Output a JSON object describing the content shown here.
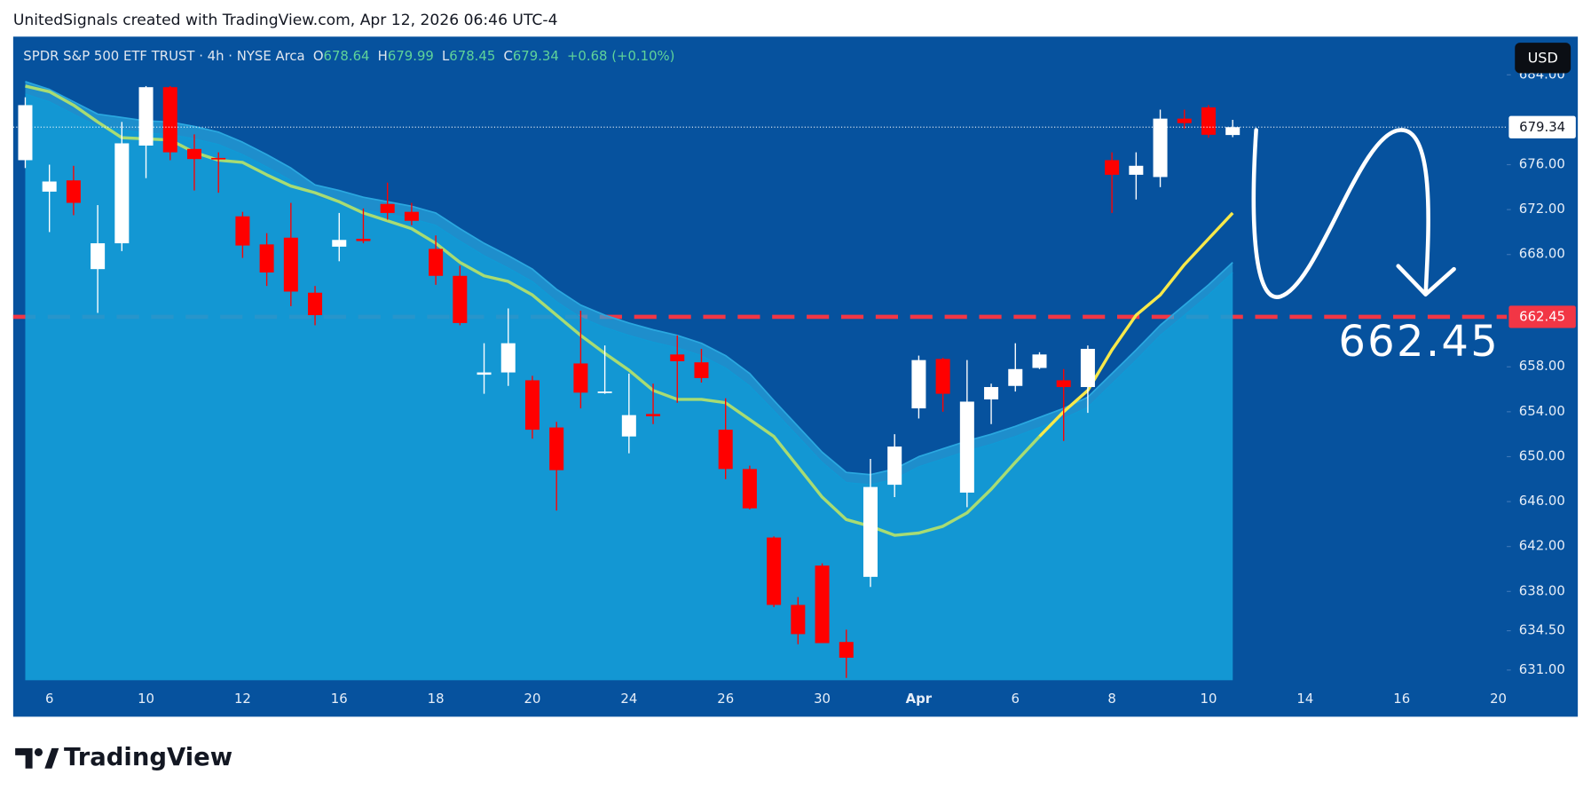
{
  "chart_data": {
    "type": "candlestick",
    "attribution": "UnitedSignals created with TradingView.com, Apr 12, 2026 06:46 UTC-4",
    "title": "SPDR S&P 500 ETF TRUST · 4h · NYSE Arca",
    "legend_labels": [
      "O",
      "H",
      "L",
      "C"
    ],
    "change_text": "+0.68 (+0.10%)",
    "currency": "USD",
    "brand": "TradingView",
    "up_color": "#ffffff",
    "down_color": "#ff0000",
    "open": [
      676.4,
      673.6,
      674.6,
      666.7,
      669.0,
      677.7,
      682.9,
      677.4,
      676.6,
      671.4,
      668.9,
      669.5,
      664.6,
      668.7,
      669.4,
      672.5,
      671.8,
      668.5,
      666.1,
      657.3,
      657.5,
      656.8,
      652.6,
      658.3,
      655.7,
      651.8,
      653.8,
      659.1,
      658.4,
      652.4,
      648.9,
      642.8,
      636.8,
      640.3,
      633.5,
      639.3,
      647.5,
      654.3,
      658.7,
      646.8,
      655.1,
      656.3,
      657.9,
      656.8,
      656.2,
      676.4,
      675.1,
      674.9,
      680.1,
      681.1,
      678.64
    ],
    "high": [
      682.0,
      676.0,
      675.9,
      672.4,
      679.8,
      683.0,
      683.0,
      678.7,
      677.1,
      671.8,
      669.9,
      672.6,
      665.2,
      671.7,
      672.1,
      674.4,
      672.6,
      669.7,
      667.0,
      660.1,
      663.2,
      657.2,
      653.1,
      663.0,
      659.9,
      657.4,
      656.5,
      660.8,
      659.6,
      655.2,
      649.2,
      642.9,
      637.5,
      640.5,
      634.6,
      649.8,
      652.0,
      659.0,
      658.8,
      658.6,
      656.5,
      660.1,
      659.3,
      657.8,
      659.9,
      677.1,
      677.1,
      680.9,
      680.9,
      681.3,
      679.99
    ],
    "low": [
      675.7,
      670.0,
      671.5,
      662.8,
      668.3,
      674.8,
      676.4,
      673.7,
      673.5,
      667.7,
      665.2,
      663.4,
      661.7,
      667.4,
      669.0,
      671.1,
      670.6,
      665.3,
      661.7,
      655.6,
      656.3,
      651.6,
      645.2,
      654.3,
      655.6,
      650.3,
      652.9,
      654.8,
      656.6,
      648.0,
      645.3,
      636.6,
      633.3,
      633.4,
      630.3,
      638.4,
      646.4,
      653.4,
      654.0,
      645.5,
      652.9,
      655.8,
      657.8,
      651.4,
      653.9,
      671.7,
      672.9,
      674.0,
      679.2,
      678.4,
      678.45
    ],
    "close": [
      681.3,
      674.5,
      672.6,
      669.0,
      677.9,
      682.9,
      677.1,
      676.5,
      676.5,
      668.8,
      666.4,
      664.7,
      662.6,
      669.3,
      669.2,
      671.7,
      671.0,
      666.1,
      661.9,
      657.5,
      660.1,
      652.4,
      648.8,
      655.7,
      655.8,
      653.7,
      653.6,
      658.5,
      657.0,
      648.9,
      645.4,
      636.8,
      634.2,
      633.4,
      632.1,
      647.3,
      650.9,
      658.6,
      655.6,
      654.9,
      656.2,
      657.8,
      659.1,
      656.2,
      659.6,
      675.1,
      675.9,
      680.1,
      679.7,
      678.66,
      679.34
    ],
    "series": [
      {
        "color": "#a8dc73",
        "values": [
          683.0,
          682.5,
          681.3,
          679.8,
          678.4,
          678.3,
          678.2,
          677.1,
          676.4,
          676.2,
          675.1,
          674.1,
          673.5,
          672.7,
          671.7,
          671.0,
          670.3,
          669.0,
          667.3,
          666.1,
          665.6,
          664.4,
          662.6,
          660.8,
          659.2,
          657.7,
          655.9,
          655.1,
          655.1,
          654.8,
          653.3,
          651.8,
          649.1,
          646.4,
          644.4,
          643.8,
          643.0,
          643.2,
          643.8,
          645.0,
          647.1,
          649.5,
          651.8,
          null,
          null,
          null,
          null,
          null,
          null,
          null,
          null
        ]
      },
      {
        "color": "#f7e94a",
        "values": [
          null,
          null,
          null,
          null,
          null,
          null,
          null,
          null,
          null,
          null,
          null,
          null,
          null,
          null,
          null,
          null,
          null,
          null,
          null,
          null,
          null,
          null,
          null,
          null,
          null,
          null,
          null,
          null,
          null,
          null,
          null,
          null,
          null,
          null,
          null,
          null,
          null,
          null,
          null,
          null,
          null,
          null,
          651.8,
          654.0,
          655.9,
          659.5,
          662.6,
          664.4,
          667.1,
          669.4,
          671.7
        ]
      }
    ],
    "band": {
      "upper_color": "#2aa8e0",
      "lower_color": "#0f9bd6",
      "upper": [
        683.4,
        682.7,
        681.6,
        680.5,
        680.2,
        679.9,
        679.8,
        679.4,
        678.9,
        678.0,
        676.9,
        675.7,
        674.2,
        673.7,
        673.1,
        672.7,
        672.3,
        671.7,
        670.3,
        669.0,
        667.9,
        666.7,
        664.9,
        663.5,
        662.6,
        661.9,
        661.3,
        660.8,
        660.1,
        659.0,
        657.4,
        655.0,
        652.7,
        650.4,
        648.6,
        648.4,
        648.9,
        650.0,
        650.7,
        651.4,
        652.0,
        652.7,
        653.5,
        654.3,
        655.3,
        657.4,
        659.5,
        661.7,
        663.5,
        665.3,
        667.3
      ],
      "lower": [
        682.3,
        681.6,
        680.5,
        679.4,
        679.1,
        678.8,
        678.7,
        678.3,
        677.8,
        676.9,
        675.8,
        674.6,
        673.1,
        672.6,
        672.0,
        671.6,
        671.2,
        670.6,
        669.2,
        667.9,
        666.8,
        665.6,
        663.8,
        662.4,
        661.5,
        660.8,
        660.2,
        659.7,
        659.0,
        657.9,
        656.3,
        654.1,
        651.8,
        649.5,
        647.7,
        647.5,
        648.0,
        649.1,
        649.8,
        650.5,
        651.1,
        651.8,
        652.6,
        653.4,
        654.4,
        656.5,
        658.6,
        660.8,
        662.6,
        664.4,
        666.4
      ]
    },
    "price_line": {
      "value": 662.45,
      "color": "#f23645"
    },
    "ylim": [
      630.1,
      687.4
    ],
    "yticks": [
      {
        "value": 631,
        "label": "631.00"
      },
      {
        "value": 634.5,
        "label": "634.50"
      },
      {
        "value": 638,
        "label": "638.00"
      },
      {
        "value": 642,
        "label": "642.00"
      },
      {
        "value": 646,
        "label": "646.00"
      },
      {
        "value": 650,
        "label": "650.00"
      },
      {
        "value": 654,
        "label": "654.00"
      },
      {
        "value": 658,
        "label": "658.00"
      },
      {
        "value": 668,
        "label": "668.00"
      },
      {
        "value": 672,
        "label": "672.00"
      },
      {
        "value": 676,
        "label": "676.00"
      },
      {
        "value": 684,
        "label": "684.00"
      }
    ],
    "xlim": [
      -0.5,
      61.35
    ],
    "xticks": [
      {
        "value": 1,
        "label": "6"
      },
      {
        "value": 5,
        "label": "10"
      },
      {
        "value": 9,
        "label": "12"
      },
      {
        "value": 13,
        "label": "16"
      },
      {
        "value": 17,
        "label": "18"
      },
      {
        "value": 21,
        "label": "20"
      },
      {
        "value": 25,
        "label": "24"
      },
      {
        "value": 29,
        "label": "26"
      },
      {
        "value": 33,
        "label": "30"
      },
      {
        "value": 37,
        "label": "Apr"
      },
      {
        "value": 41,
        "label": "6"
      },
      {
        "value": 45,
        "label": "8"
      },
      {
        "value": 49,
        "label": "10"
      },
      {
        "value": 53,
        "label": "14"
      },
      {
        "value": 57,
        "label": "16"
      },
      {
        "value": 61,
        "label": "20"
      }
    ]
  }
}
